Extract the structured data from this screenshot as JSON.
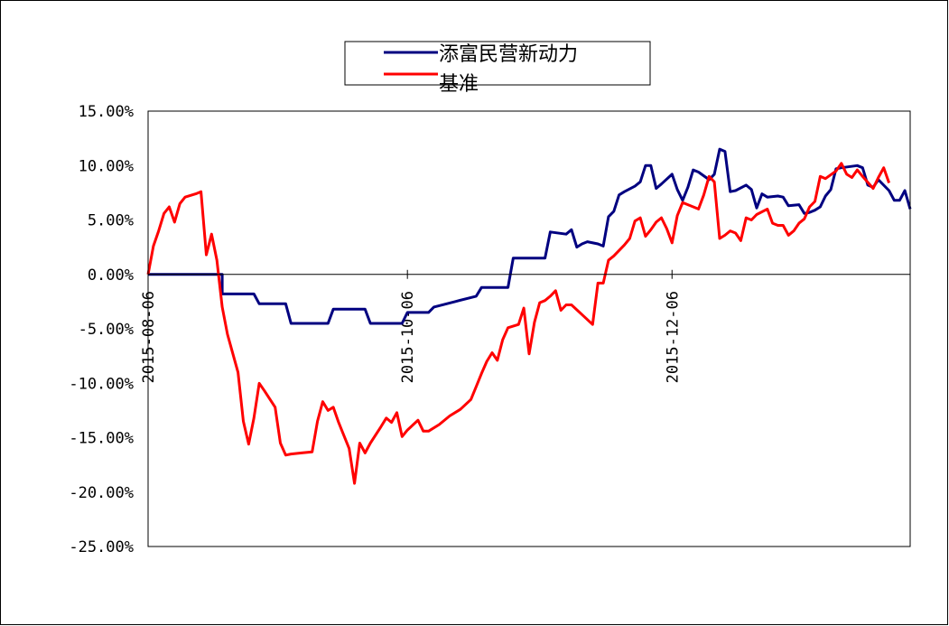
{
  "chart_data": {
    "type": "line",
    "x_tick_labels": [
      "2015-08-06",
      "2015-10-06",
      "2015-12-06"
    ],
    "y_tick_labels": [
      "15.00%",
      "10.00%",
      "5.00%",
      "0.00%",
      "-5.00%",
      "-10.00%",
      "-15.00%",
      "-20.00%",
      "-25.00%"
    ],
    "ylim": [
      -25,
      15
    ],
    "y_unit": "%",
    "grid": false,
    "legend_position": "top",
    "x_axis_note": "approximately daily trading observations from 2015-08-06 to 2015-12-31",
    "series": [
      {
        "name": "添富民营新动力",
        "color": "#000080",
        "points": [
          [
            0,
            0.0
          ],
          [
            14,
            0.0
          ],
          [
            14,
            -1.8
          ],
          [
            20,
            -1.8
          ],
          [
            21,
            -2.7
          ],
          [
            26,
            -2.7
          ],
          [
            27,
            -4.5
          ],
          [
            34,
            -4.5
          ],
          [
            35,
            -3.2
          ],
          [
            41,
            -3.2
          ],
          [
            42,
            -4.5
          ],
          [
            48,
            -4.5
          ],
          [
            49,
            -3.5
          ],
          [
            53,
            -3.5
          ],
          [
            54,
            -3.0
          ],
          [
            58,
            -2.5
          ],
          [
            62,
            -2.0
          ],
          [
            63,
            -1.2
          ],
          [
            68,
            -1.2
          ],
          [
            69,
            1.5
          ],
          [
            75,
            1.5
          ],
          [
            76,
            3.9
          ],
          [
            79,
            3.7
          ],
          [
            80,
            4.1
          ],
          [
            81,
            2.5
          ],
          [
            82,
            2.8
          ],
          [
            83,
            3.0
          ],
          [
            85,
            2.8
          ],
          [
            86,
            2.6
          ],
          [
            87,
            5.3
          ],
          [
            88,
            5.8
          ],
          [
            89,
            7.3
          ],
          [
            90,
            7.6
          ],
          [
            92,
            8.1
          ],
          [
            93,
            8.5
          ],
          [
            94,
            10.0
          ],
          [
            95,
            10.0
          ],
          [
            96,
            7.9
          ],
          [
            97,
            8.3
          ],
          [
            99,
            9.2
          ],
          [
            100,
            7.8
          ],
          [
            101,
            6.8
          ],
          [
            102,
            8.0
          ],
          [
            103,
            9.6
          ],
          [
            104,
            9.4
          ],
          [
            106,
            8.7
          ],
          [
            107,
            9.2
          ],
          [
            108,
            11.5
          ],
          [
            109,
            11.3
          ],
          [
            110,
            7.6
          ],
          [
            111,
            7.7
          ],
          [
            113,
            8.2
          ],
          [
            114,
            7.8
          ],
          [
            115,
            6.1
          ],
          [
            116,
            7.4
          ],
          [
            117,
            7.1
          ],
          [
            119,
            7.2
          ],
          [
            120,
            7.1
          ],
          [
            121,
            6.3
          ],
          [
            123,
            6.4
          ],
          [
            124,
            5.6
          ],
          [
            125,
            5.7
          ],
          [
            126,
            5.9
          ],
          [
            127,
            6.2
          ],
          [
            128,
            7.2
          ],
          [
            129,
            7.8
          ],
          [
            130,
            9.7
          ],
          [
            131,
            9.8
          ],
          [
            134,
            10.0
          ],
          [
            135,
            9.8
          ],
          [
            136,
            8.2
          ],
          [
            137,
            8.0
          ],
          [
            138,
            8.7
          ],
          [
            140,
            7.7
          ],
          [
            141,
            6.8
          ],
          [
            142,
            6.8
          ],
          [
            143,
            7.7
          ],
          [
            144,
            6.0
          ]
        ]
      },
      {
        "name": "基准",
        "color": "#ff0000",
        "points": [
          [
            0,
            0.0
          ],
          [
            1,
            2.6
          ],
          [
            2,
            4.0
          ],
          [
            3,
            5.6
          ],
          [
            4,
            6.2
          ],
          [
            5,
            4.8
          ],
          [
            6,
            6.5
          ],
          [
            7,
            7.1
          ],
          [
            9,
            7.4
          ],
          [
            10,
            7.6
          ],
          [
            11,
            1.8
          ],
          [
            12,
            3.7
          ],
          [
            13,
            1.3
          ],
          [
            14,
            -3.0
          ],
          [
            15,
            -5.5
          ],
          [
            17,
            -9.0
          ],
          [
            18,
            -13.5
          ],
          [
            19,
            -15.6
          ],
          [
            20,
            -13.2
          ],
          [
            21,
            -10.0
          ],
          [
            22,
            -10.7
          ],
          [
            24,
            -12.2
          ],
          [
            25,
            -15.5
          ],
          [
            26,
            -16.6
          ],
          [
            27,
            -16.5
          ],
          [
            29,
            -16.4
          ],
          [
            31,
            -16.3
          ],
          [
            32,
            -13.5
          ],
          [
            33,
            -11.7
          ],
          [
            34,
            -12.5
          ],
          [
            35,
            -12.2
          ],
          [
            36,
            -13.6
          ],
          [
            38,
            -16.0
          ],
          [
            39,
            -19.2
          ],
          [
            40,
            -15.5
          ],
          [
            41,
            -16.4
          ],
          [
            42,
            -15.5
          ],
          [
            44,
            -14.0
          ],
          [
            45,
            -13.2
          ],
          [
            46,
            -13.6
          ],
          [
            47,
            -12.7
          ],
          [
            48,
            -14.9
          ],
          [
            49,
            -14.3
          ],
          [
            51,
            -13.4
          ],
          [
            52,
            -14.4
          ],
          [
            53,
            -14.4
          ],
          [
            55,
            -13.8
          ],
          [
            57,
            -13.0
          ],
          [
            59,
            -12.4
          ],
          [
            61,
            -11.5
          ],
          [
            62,
            -10.3
          ],
          [
            63,
            -9.1
          ],
          [
            64,
            -8.0
          ],
          [
            65,
            -7.2
          ],
          [
            66,
            -7.9
          ],
          [
            67,
            -6.0
          ],
          [
            68,
            -4.9
          ],
          [
            70,
            -4.6
          ],
          [
            71,
            -3.1
          ],
          [
            72,
            -7.3
          ],
          [
            73,
            -4.4
          ],
          [
            74,
            -2.6
          ],
          [
            75,
            -2.4
          ],
          [
            76,
            -2.0
          ],
          [
            77,
            -1.5
          ],
          [
            78,
            -3.3
          ],
          [
            79,
            -2.8
          ],
          [
            80,
            -2.8
          ],
          [
            82,
            -3.7
          ],
          [
            84,
            -4.6
          ],
          [
            85,
            -0.8
          ],
          [
            86,
            -0.8
          ],
          [
            87,
            1.3
          ],
          [
            88,
            1.7
          ],
          [
            90,
            2.7
          ],
          [
            91,
            3.3
          ],
          [
            92,
            4.9
          ],
          [
            93,
            5.2
          ],
          [
            94,
            3.5
          ],
          [
            95,
            4.1
          ],
          [
            96,
            4.8
          ],
          [
            97,
            5.2
          ],
          [
            98,
            4.2
          ],
          [
            99,
            2.9
          ],
          [
            100,
            5.4
          ],
          [
            101,
            6.6
          ],
          [
            102,
            6.4
          ],
          [
            104,
            6.0
          ],
          [
            105,
            7.3
          ],
          [
            106,
            9.0
          ],
          [
            107,
            8.5
          ],
          [
            108,
            3.3
          ],
          [
            109,
            3.6
          ],
          [
            110,
            4.0
          ],
          [
            111,
            3.8
          ],
          [
            112,
            3.1
          ],
          [
            113,
            5.2
          ],
          [
            114,
            5.0
          ],
          [
            115,
            5.5
          ],
          [
            117,
            6.0
          ],
          [
            118,
            4.7
          ],
          [
            119,
            4.5
          ],
          [
            120,
            4.5
          ],
          [
            121,
            3.6
          ],
          [
            122,
            4.0
          ],
          [
            123,
            4.7
          ],
          [
            124,
            5.1
          ],
          [
            125,
            6.2
          ],
          [
            126,
            6.7
          ],
          [
            127,
            9.0
          ],
          [
            128,
            8.8
          ],
          [
            130,
            9.5
          ],
          [
            131,
            10.2
          ],
          [
            132,
            9.2
          ],
          [
            133,
            8.9
          ],
          [
            134,
            9.6
          ],
          [
            135,
            9.0
          ],
          [
            137,
            7.9
          ],
          [
            138,
            8.9
          ],
          [
            139,
            9.8
          ],
          [
            140,
            8.4
          ]
        ]
      }
    ]
  }
}
